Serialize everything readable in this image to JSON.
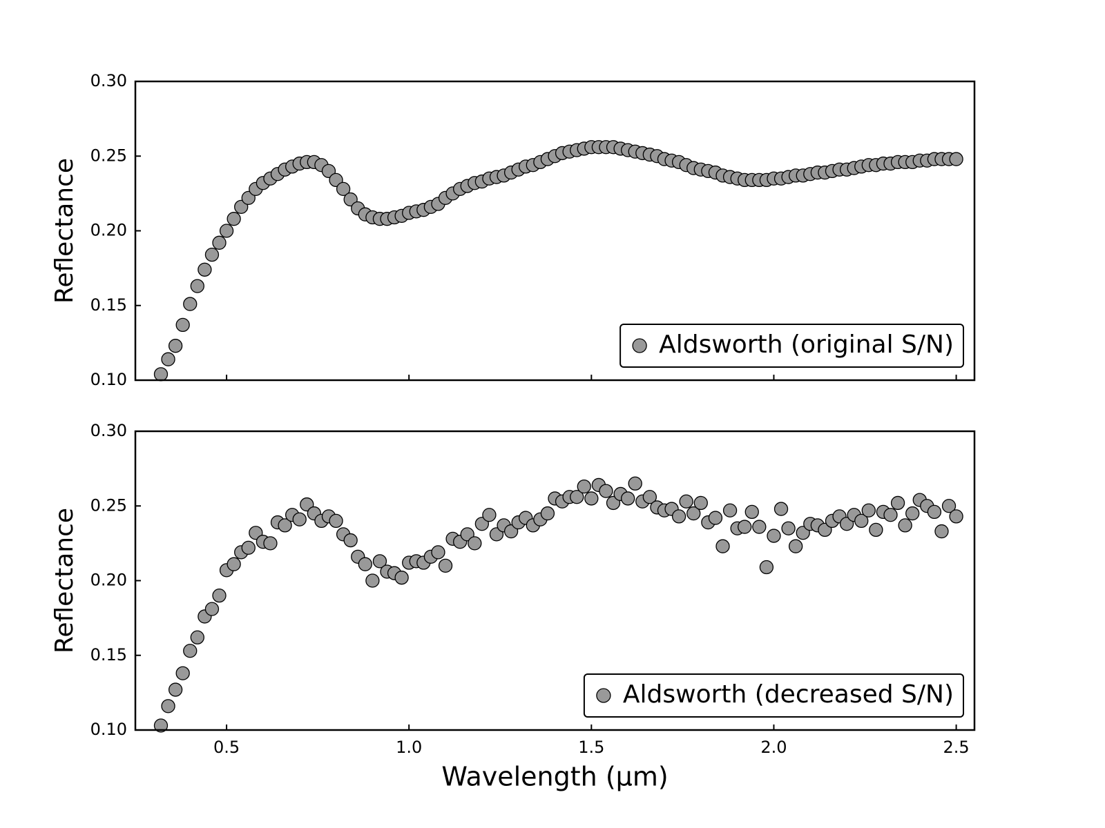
{
  "chart_data": [
    {
      "type": "scatter",
      "ylabel": "Reflectance",
      "legend": "lower right",
      "color": "#999999",
      "edgecolor": "#000000",
      "xlim": [
        0.25,
        2.55
      ],
      "ylim": [
        0.1,
        0.3
      ],
      "xticks": [
        0.5,
        1.0,
        1.5,
        2.0,
        2.5
      ],
      "xtick_labels": false,
      "yticks": [
        {
          "value": 0.1,
          "label": "0.10"
        },
        {
          "value": 0.15,
          "label": "0.15"
        },
        {
          "value": 0.2,
          "label": "0.20"
        },
        {
          "value": 0.25,
          "label": "0.25"
        },
        {
          "value": 0.3,
          "label": "0.30"
        }
      ],
      "series": [
        {
          "name": "Aldsworth (original S/N)",
          "x": [
            0.32,
            0.34,
            0.36,
            0.38,
            0.4,
            0.42,
            0.44,
            0.46,
            0.48,
            0.5,
            0.52,
            0.54,
            0.56,
            0.58,
            0.6,
            0.62,
            0.64,
            0.66,
            0.68,
            0.7,
            0.72,
            0.74,
            0.76,
            0.78,
            0.8,
            0.82,
            0.84,
            0.86,
            0.88,
            0.9,
            0.92,
            0.94,
            0.96,
            0.98,
            1.0,
            1.02,
            1.04,
            1.06,
            1.08,
            1.1,
            1.12,
            1.14,
            1.16,
            1.18,
            1.2,
            1.22,
            1.24,
            1.26,
            1.28,
            1.3,
            1.32,
            1.34,
            1.36,
            1.38,
            1.4,
            1.42,
            1.44,
            1.46,
            1.48,
            1.5,
            1.52,
            1.54,
            1.56,
            1.58,
            1.6,
            1.62,
            1.64,
            1.66,
            1.68,
            1.7,
            1.72,
            1.74,
            1.76,
            1.78,
            1.8,
            1.82,
            1.84,
            1.86,
            1.88,
            1.9,
            1.92,
            1.94,
            1.96,
            1.98,
            2.0,
            2.02,
            2.04,
            2.06,
            2.08,
            2.1,
            2.12,
            2.14,
            2.16,
            2.18,
            2.2,
            2.22,
            2.24,
            2.26,
            2.28,
            2.3,
            2.32,
            2.34,
            2.36,
            2.38,
            2.4,
            2.42,
            2.44,
            2.46,
            2.48,
            2.5
          ],
          "values": [
            0.104,
            0.114,
            0.123,
            0.137,
            0.151,
            0.163,
            0.174,
            0.184,
            0.192,
            0.2,
            0.208,
            0.216,
            0.222,
            0.228,
            0.232,
            0.235,
            0.238,
            0.241,
            0.243,
            0.245,
            0.246,
            0.246,
            0.244,
            0.24,
            0.234,
            0.228,
            0.221,
            0.215,
            0.211,
            0.209,
            0.208,
            0.208,
            0.209,
            0.21,
            0.212,
            0.213,
            0.214,
            0.216,
            0.218,
            0.222,
            0.225,
            0.228,
            0.23,
            0.232,
            0.233,
            0.235,
            0.236,
            0.237,
            0.239,
            0.241,
            0.243,
            0.244,
            0.246,
            0.248,
            0.25,
            0.252,
            0.253,
            0.254,
            0.255,
            0.256,
            0.256,
            0.256,
            0.256,
            0.255,
            0.254,
            0.253,
            0.252,
            0.251,
            0.25,
            0.248,
            0.247,
            0.246,
            0.244,
            0.242,
            0.241,
            0.24,
            0.239,
            0.237,
            0.236,
            0.235,
            0.234,
            0.234,
            0.234,
            0.234,
            0.235,
            0.235,
            0.236,
            0.237,
            0.237,
            0.238,
            0.239,
            0.239,
            0.24,
            0.241,
            0.241,
            0.242,
            0.243,
            0.244,
            0.244,
            0.245,
            0.245,
            0.246,
            0.246,
            0.246,
            0.247,
            0.247,
            0.248,
            0.248,
            0.248,
            0.248
          ]
        }
      ]
    },
    {
      "type": "scatter",
      "ylabel": "Reflectance",
      "xlabel": "Wavelength (μm)",
      "legend": "lower right",
      "color": "#999999",
      "edgecolor": "#000000",
      "xlim": [
        0.25,
        2.55
      ],
      "ylim": [
        0.1,
        0.3
      ],
      "xticks": [
        0.5,
        {
          "value": 1.0,
          "label": "1.0"
        },
        1.5,
        {
          "value": 2.0,
          "label": "2.0"
        },
        2.5
      ],
      "xtick_labels": true,
      "yticks": [
        {
          "value": 0.1,
          "label": "0.10"
        },
        {
          "value": 0.15,
          "label": "0.15"
        },
        {
          "value": 0.2,
          "label": "0.20"
        },
        {
          "value": 0.25,
          "label": "0.25"
        },
        {
          "value": 0.3,
          "label": "0.30"
        }
      ],
      "series": [
        {
          "name": "Aldsworth (decreased S/N)",
          "x": [
            0.32,
            0.34,
            0.36,
            0.38,
            0.4,
            0.42,
            0.44,
            0.46,
            0.48,
            0.5,
            0.52,
            0.54,
            0.56,
            0.58,
            0.6,
            0.62,
            0.64,
            0.66,
            0.68,
            0.7,
            0.72,
            0.74,
            0.76,
            0.78,
            0.8,
            0.82,
            0.84,
            0.86,
            0.88,
            0.9,
            0.92,
            0.94,
            0.96,
            0.98,
            1.0,
            1.02,
            1.04,
            1.06,
            1.08,
            1.1,
            1.12,
            1.14,
            1.16,
            1.18,
            1.2,
            1.22,
            1.24,
            1.26,
            1.28,
            1.3,
            1.32,
            1.34,
            1.36,
            1.38,
            1.4,
            1.42,
            1.44,
            1.46,
            1.48,
            1.5,
            1.52,
            1.54,
            1.56,
            1.58,
            1.6,
            1.62,
            1.64,
            1.66,
            1.68,
            1.7,
            1.72,
            1.74,
            1.76,
            1.78,
            1.8,
            1.82,
            1.84,
            1.86,
            1.88,
            1.9,
            1.92,
            1.94,
            1.96,
            1.98,
            2.0,
            2.02,
            2.04,
            2.06,
            2.08,
            2.1,
            2.12,
            2.14,
            2.16,
            2.18,
            2.2,
            2.22,
            2.24,
            2.26,
            2.28,
            2.3,
            2.32,
            2.34,
            2.36,
            2.38,
            2.4,
            2.42,
            2.44,
            2.46,
            2.48,
            2.5
          ],
          "values": [
            0.103,
            0.116,
            0.127,
            0.138,
            0.153,
            0.162,
            0.176,
            0.181,
            0.19,
            0.207,
            0.211,
            0.219,
            0.222,
            0.232,
            0.226,
            0.225,
            0.239,
            0.237,
            0.244,
            0.241,
            0.251,
            0.245,
            0.24,
            0.243,
            0.24,
            0.231,
            0.227,
            0.216,
            0.211,
            0.2,
            0.213,
            0.206,
            0.205,
            0.202,
            0.212,
            0.213,
            0.212,
            0.216,
            0.219,
            0.21,
            0.228,
            0.226,
            0.231,
            0.225,
            0.238,
            0.244,
            0.231,
            0.237,
            0.233,
            0.239,
            0.242,
            0.237,
            0.241,
            0.245,
            0.255,
            0.253,
            0.256,
            0.256,
            0.263,
            0.255,
            0.264,
            0.26,
            0.252,
            0.258,
            0.255,
            0.265,
            0.253,
            0.256,
            0.249,
            0.247,
            0.248,
            0.243,
            0.253,
            0.245,
            0.252,
            0.239,
            0.242,
            0.223,
            0.247,
            0.235,
            0.236,
            0.246,
            0.236,
            0.209,
            0.23,
            0.248,
            0.235,
            0.223,
            0.232,
            0.238,
            0.237,
            0.234,
            0.24,
            0.243,
            0.238,
            0.244,
            0.24,
            0.247,
            0.234,
            0.246,
            0.244,
            0.252,
            0.237,
            0.245,
            0.254,
            0.25,
            0.246,
            0.233,
            0.25,
            0.243
          ]
        }
      ]
    }
  ]
}
